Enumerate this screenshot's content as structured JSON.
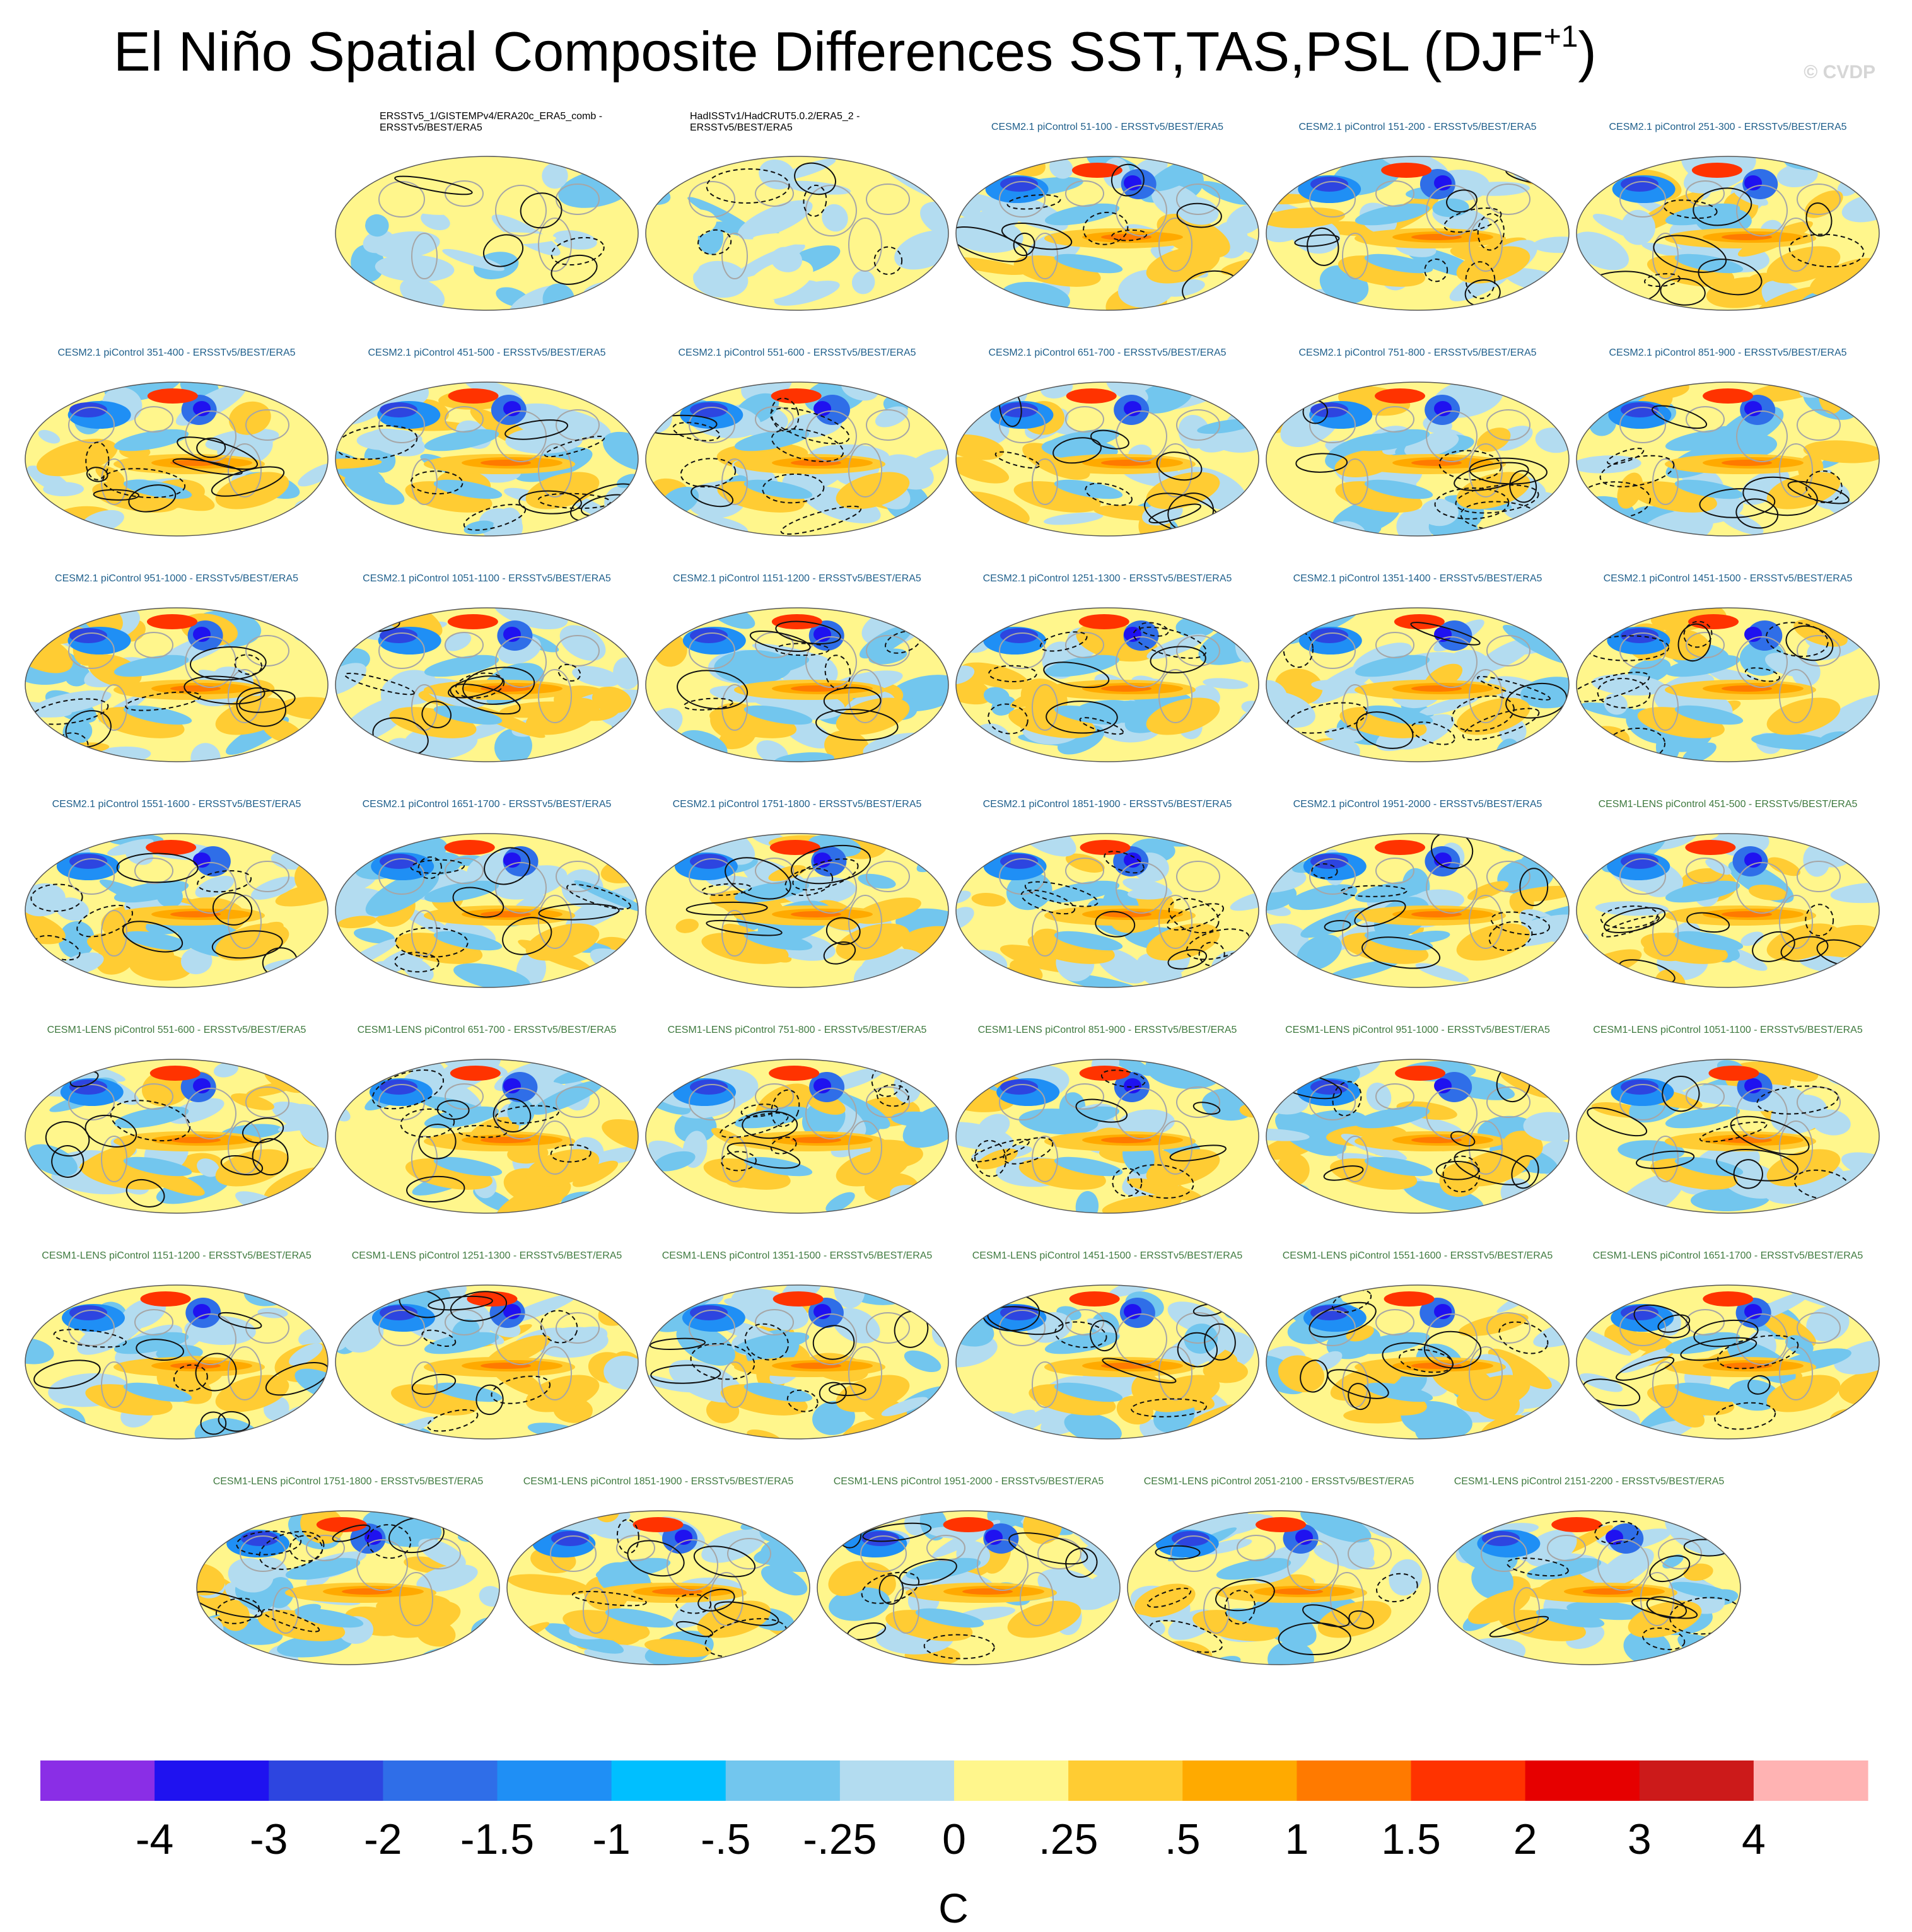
{
  "figure": {
    "title": "El Niño Spatial Composite Differences SST,TAS,PSL (DJF",
    "title_superscript": "+1",
    "title_close": ")",
    "watermark": "© CVDP",
    "colorbar_units": "C"
  },
  "chart_data": {
    "type": "heatmap",
    "description_panels_count": 40,
    "colorbar": {
      "tick_labels": [
        "-4",
        "-3",
        "-2",
        "-1.5",
        "-1",
        "-.5",
        "-.25",
        "0",
        ".25",
        ".5",
        "1",
        "1.5",
        "2",
        "3",
        "4"
      ],
      "colors": [
        "#8a2ee6",
        "#1f12f0",
        "#2d45e0",
        "#2f6ee8",
        "#1f8ff5",
        "#00bfff",
        "#72c6ee",
        "#b3dcf0",
        "#fff68c",
        "#ffcc33",
        "#ffaa00",
        "#ff7a00",
        "#ff3300",
        "#e60000",
        "#cc1a1a",
        "#ffb3b3"
      ]
    },
    "panels": [
      {
        "label": "ERSSTv5_1/GISTEMPv4/ERA20c_ERA5_comb -\nERSSTv5/BEST/ERA5",
        "style": "obs",
        "amplitude": 0.3
      },
      {
        "label": "HadISSTv1/HadCRUT5.0.2/ERA5_2 -\nERSSTv5/BEST/ERA5",
        "style": "obs",
        "amplitude": 0.3
      },
      {
        "label": "CESM2.1 piControl 51-100 - ERSSTv5/BEST/ERA5",
        "style": "cesm2",
        "amplitude": 1
      },
      {
        "label": "CESM2.1 piControl 151-200 - ERSSTv5/BEST/ERA5",
        "style": "cesm2",
        "amplitude": 1
      },
      {
        "label": "CESM2.1 piControl 251-300 - ERSSTv5/BEST/ERA5",
        "style": "cesm2",
        "amplitude": 1
      },
      {
        "label": "CESM2.1 piControl 351-400 - ERSSTv5/BEST/ERA5",
        "style": "cesm2",
        "amplitude": 1
      },
      {
        "label": "CESM2.1 piControl 451-500 - ERSSTv5/BEST/ERA5",
        "style": "cesm2",
        "amplitude": 1
      },
      {
        "label": "CESM2.1 piControl 551-600 - ERSSTv5/BEST/ERA5",
        "style": "cesm2",
        "amplitude": 1
      },
      {
        "label": "CESM2.1 piControl 651-700 - ERSSTv5/BEST/ERA5",
        "style": "cesm2",
        "amplitude": 1
      },
      {
        "label": "CESM2.1 piControl 751-800 - ERSSTv5/BEST/ERA5",
        "style": "cesm2",
        "amplitude": 1
      },
      {
        "label": "CESM2.1 piControl 851-900 - ERSSTv5/BEST/ERA5",
        "style": "cesm2",
        "amplitude": 1
      },
      {
        "label": "CESM2.1 piControl 951-1000 - ERSSTv5/BEST/ERA5",
        "style": "cesm2",
        "amplitude": 1
      },
      {
        "label": "CESM2.1 piControl 1051-1100 - ERSSTv5/BEST/ERA5",
        "style": "cesm2",
        "amplitude": 1
      },
      {
        "label": "CESM2.1 piControl 1151-1200 - ERSSTv5/BEST/ERA5",
        "style": "cesm2",
        "amplitude": 1
      },
      {
        "label": "CESM2.1 piControl 1251-1300 - ERSSTv5/BEST/ERA5",
        "style": "cesm2",
        "amplitude": 1
      },
      {
        "label": "CESM2.1 piControl 1351-1400 - ERSSTv5/BEST/ERA5",
        "style": "cesm2",
        "amplitude": 1
      },
      {
        "label": "CESM2.1 piControl 1451-1500 - ERSSTv5/BEST/ERA5",
        "style": "cesm2",
        "amplitude": 1
      },
      {
        "label": "CESM2.1 piControl 1551-1600 - ERSSTv5/BEST/ERA5",
        "style": "cesm2",
        "amplitude": 1
      },
      {
        "label": "CESM2.1 piControl 1651-1700 - ERSSTv5/BEST/ERA5",
        "style": "cesm2",
        "amplitude": 1
      },
      {
        "label": "CESM2.1 piControl 1751-1800 - ERSSTv5/BEST/ERA5",
        "style": "cesm2",
        "amplitude": 1
      },
      {
        "label": "CESM2.1 piControl 1851-1900 - ERSSTv5/BEST/ERA5",
        "style": "cesm2",
        "amplitude": 1
      },
      {
        "label": "CESM2.1 piControl 1951-2000 - ERSSTv5/BEST/ERA5",
        "style": "cesm2",
        "amplitude": 1
      },
      {
        "label": "CESM1-LENS piControl 451-500 - ERSSTv5/BEST/ERA5",
        "style": "cesm1",
        "amplitude": 1
      },
      {
        "label": "CESM1-LENS piControl 551-600 - ERSSTv5/BEST/ERA5",
        "style": "cesm1",
        "amplitude": 1
      },
      {
        "label": "CESM1-LENS piControl 651-700 - ERSSTv5/BEST/ERA5",
        "style": "cesm1",
        "amplitude": 1
      },
      {
        "label": "CESM1-LENS piControl 751-800 - ERSSTv5/BEST/ERA5",
        "style": "cesm1",
        "amplitude": 1
      },
      {
        "label": "CESM1-LENS piControl 851-900 - ERSSTv5/BEST/ERA5",
        "style": "cesm1",
        "amplitude": 1
      },
      {
        "label": "CESM1-LENS piControl 951-1000 - ERSSTv5/BEST/ERA5",
        "style": "cesm1",
        "amplitude": 1
      },
      {
        "label": "CESM1-LENS piControl 1051-1100 - ERSSTv5/BEST/ERA5",
        "style": "cesm1",
        "amplitude": 1
      },
      {
        "label": "CESM1-LENS piControl 1151-1200 - ERSSTv5/BEST/ERA5",
        "style": "cesm1",
        "amplitude": 1
      },
      {
        "label": "CESM1-LENS piControl 1251-1300 - ERSSTv5/BEST/ERA5",
        "style": "cesm1",
        "amplitude": 1
      },
      {
        "label": "CESM1-LENS piControl 1351-1500 - ERSSTv5/BEST/ERA5",
        "style": "cesm1",
        "amplitude": 1
      },
      {
        "label": "CESM1-LENS piControl 1451-1500 - ERSSTv5/BEST/ERA5",
        "style": "cesm1",
        "amplitude": 1
      },
      {
        "label": "CESM1-LENS piControl 1551-1600 - ERSSTv5/BEST/ERA5",
        "style": "cesm1",
        "amplitude": 1
      },
      {
        "label": "CESM1-LENS piControl 1651-1700 - ERSSTv5/BEST/ERA5",
        "style": "cesm1",
        "amplitude": 1
      },
      {
        "label": "CESM1-LENS piControl 1751-1800 - ERSSTv5/BEST/ERA5",
        "style": "cesm1",
        "amplitude": 1
      },
      {
        "label": "CESM1-LENS piControl 1851-1900 - ERSSTv5/BEST/ERA5",
        "style": "cesm1",
        "amplitude": 1
      },
      {
        "label": "CESM1-LENS piControl 1951-2000 - ERSSTv5/BEST/ERA5",
        "style": "cesm1",
        "amplitude": 1
      },
      {
        "label": "CESM1-LENS piControl 2051-2100 - ERSSTv5/BEST/ERA5",
        "style": "cesm1",
        "amplitude": 1
      },
      {
        "label": "CESM1-LENS piControl 2151-2200 - ERSSTv5/BEST/ERA5",
        "style": "cesm1",
        "amplitude": 1
      }
    ],
    "label_colors": {
      "obs": "#000000",
      "cesm2": "#1f5f8b",
      "cesm1": "#3f7a3f"
    }
  }
}
